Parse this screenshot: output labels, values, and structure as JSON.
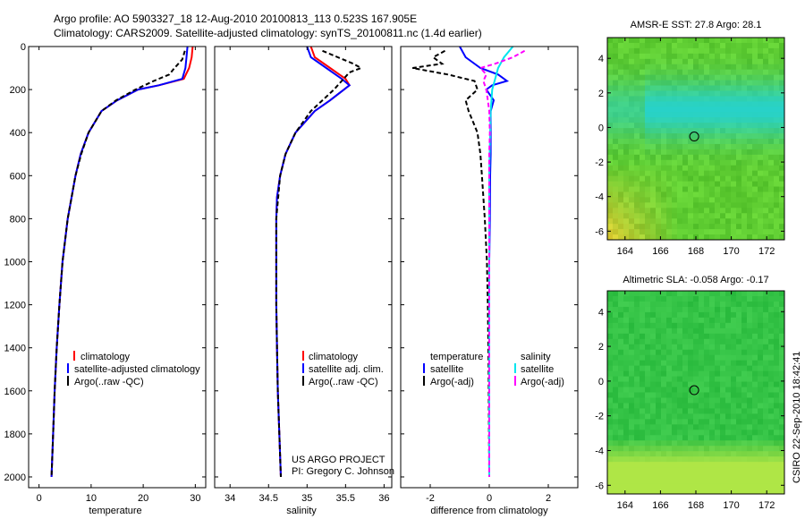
{
  "title": {
    "line1": "Argo profile: AO 5903327_18 12-Aug-2010 20100813_113 0.523S 167.905E",
    "line2": "Climatology: CARS2009. Satellite-adjusted climatology: synTS_20100811.nc (1.4d earlier)"
  },
  "side_text": "CSIRO 22-Sep-2010 18:42:41",
  "colors": {
    "climatology": "#ff0000",
    "satellite": "#0000ff",
    "argo": "#000000",
    "sal_satellite": "#00e5ee",
    "sal_argo": "#ff00ff"
  },
  "chart_data": [
    {
      "id": "temperature",
      "type": "line",
      "xlabel": "temperature",
      "ylabel": "",
      "xlim": [
        -2,
        32
      ],
      "ylim": [
        2050,
        0
      ],
      "xticks": [
        0,
        10,
        20,
        30
      ],
      "yticks": [
        0,
        200,
        400,
        600,
        800,
        1000,
        1200,
        1400,
        1600,
        1800,
        2000
      ],
      "legend": [
        "climatology",
        "satellite-adjusted climatology",
        "Argo(..raw -QC)"
      ],
      "series": [
        {
          "name": "climatology",
          "color": "#ff0000",
          "dash": "",
          "depth": [
            0,
            50,
            100,
            150,
            180,
            200,
            250,
            300,
            400,
            500,
            600,
            800,
            1000,
            1200,
            1400,
            1600,
            1800,
            2000
          ],
          "values": [
            29.5,
            29.3,
            28.8,
            27.8,
            23,
            19,
            15,
            12,
            9.5,
            8,
            7,
            5.5,
            4.5,
            3.9,
            3.4,
            3.0,
            2.7,
            2.4
          ]
        },
        {
          "name": "satellite",
          "color": "#0000ff",
          "dash": "",
          "depth": [
            0,
            50,
            100,
            150,
            180,
            200,
            250,
            300,
            400,
            500,
            600,
            800,
            1000,
            1200,
            1400,
            1600,
            1800,
            2000
          ],
          "values": [
            28.5,
            28.3,
            28.1,
            27.5,
            23,
            19,
            15,
            12,
            9.5,
            8,
            7,
            5.5,
            4.5,
            3.9,
            3.4,
            3.0,
            2.7,
            2.4
          ]
        },
        {
          "name": "Argo",
          "color": "#000000",
          "dash": "5,3",
          "depth": [
            20,
            60,
            100,
            130,
            160,
            200,
            250,
            300,
            400,
            500,
            600,
            800,
            1000,
            1200,
            1400,
            1600,
            1800,
            2000
          ],
          "values": [
            28,
            27.5,
            26,
            25,
            22,
            18.5,
            14.8,
            12,
            9.5,
            8.1,
            7,
            5.5,
            4.5,
            3.9,
            3.4,
            3.0,
            2.7,
            2.4
          ]
        }
      ]
    },
    {
      "id": "salinity",
      "type": "line",
      "xlabel": "salinity",
      "ylabel": "",
      "xlim": [
        33.8,
        36.1
      ],
      "ylim": [
        2050,
        0
      ],
      "xticks": [
        34,
        34.5,
        35,
        35.5,
        36
      ],
      "xticklabels": [
        "34",
        "34.5",
        "35",
        "35.5",
        "36"
      ],
      "yticks": [
        0,
        200,
        400,
        600,
        800,
        1000,
        1200,
        1400,
        1600,
        1800,
        2000
      ],
      "legend": [
        "climatology",
        "satellite adj. clim.",
        "Argo(..raw -QC)"
      ],
      "annotation": [
        "US ARGO PROJECT",
        "PI: Gregory C. Johnson"
      ],
      "series": [
        {
          "name": "climatology",
          "color": "#ff0000",
          "dash": "",
          "depth": [
            0,
            50,
            100,
            150,
            180,
            250,
            300,
            400,
            500,
            600,
            700,
            800,
            1000,
            1200,
            1400,
            1600,
            1800,
            2000
          ],
          "values": [
            35.05,
            35.1,
            35.3,
            35.5,
            35.55,
            35.3,
            35.1,
            34.85,
            34.72,
            34.65,
            34.61,
            34.6,
            34.6,
            34.6,
            34.61,
            34.62,
            34.64,
            34.66
          ]
        },
        {
          "name": "satellite",
          "color": "#0000ff",
          "dash": "",
          "depth": [
            0,
            50,
            100,
            150,
            180,
            250,
            300,
            400,
            500,
            600,
            700,
            800,
            1000,
            1200,
            1400,
            1600,
            1800,
            2000
          ],
          "values": [
            35.0,
            35.05,
            35.25,
            35.45,
            35.55,
            35.3,
            35.1,
            34.85,
            34.72,
            34.65,
            34.61,
            34.6,
            34.6,
            34.6,
            34.61,
            34.62,
            34.64,
            34.66
          ]
        },
        {
          "name": "Argo",
          "color": "#000000",
          "dash": "5,3",
          "depth": [
            20,
            50,
            80,
            100,
            120,
            160,
            200,
            250,
            300,
            400,
            500,
            600,
            800,
            1000,
            1200,
            1400,
            1600,
            1800,
            2000
          ],
          "values": [
            35.2,
            35.4,
            35.6,
            35.7,
            35.55,
            35.45,
            35.35,
            35.2,
            35.05,
            34.85,
            34.72,
            34.65,
            34.6,
            34.6,
            34.6,
            34.61,
            34.62,
            34.64,
            34.66
          ]
        }
      ]
    },
    {
      "id": "difference",
      "type": "line",
      "xlabel": "difference from climatology",
      "ylabel": "",
      "xlim": [
        -3,
        3
      ],
      "ylim": [
        2050,
        0
      ],
      "xticks": [
        -2,
        0,
        2
      ],
      "yticks": [
        0,
        200,
        400,
        600,
        800,
        1000,
        1200,
        1400,
        1600,
        1800,
        2000
      ],
      "legend_temperature": {
        "title": "temperature",
        "items": [
          "satellite",
          "Argo(-adj)"
        ]
      },
      "legend_salinity": {
        "title": "salinity",
        "items": [
          "satellite",
          "Argo(-adj)"
        ]
      },
      "series": [
        {
          "name": "temperature satellite",
          "color": "#0000ff",
          "dash": "",
          "depth": [
            0,
            50,
            100,
            130,
            160,
            180,
            200,
            250,
            300,
            400,
            500,
            600,
            800,
            1000,
            1500,
            2000
          ],
          "values": [
            -1.0,
            -0.8,
            -0.3,
            0.3,
            0.6,
            0.1,
            -0.1,
            0.15,
            0.05,
            0.05,
            0.05,
            0.03,
            0.02,
            0.0,
            0.0,
            0.0
          ]
        },
        {
          "name": "temperature Argo",
          "color": "#000000",
          "dash": "5,3",
          "depth": [
            20,
            50,
            80,
            100,
            130,
            160,
            200,
            250,
            300,
            400,
            500,
            600,
            700,
            800,
            1000,
            1200,
            1500,
            2000
          ],
          "values": [
            -1.5,
            -1.9,
            -1.6,
            -2.6,
            -1.4,
            -0.5,
            -0.4,
            -0.8,
            -0.7,
            -0.4,
            -0.3,
            -0.25,
            -0.2,
            -0.15,
            -0.08,
            -0.05,
            -0.02,
            0.0
          ]
        },
        {
          "name": "salinity satellite",
          "color": "#00e5ee",
          "dash": "",
          "depth": [
            0,
            50,
            100,
            150,
            200,
            300,
            400,
            600,
            800,
            1000,
            1500,
            2000
          ],
          "values": [
            0.8,
            0.5,
            0.3,
            0.2,
            0.1,
            0.05,
            0.03,
            0.0,
            0.0,
            0.0,
            0.0,
            0.0
          ]
        },
        {
          "name": "salinity Argo",
          "color": "#ff00ff",
          "dash": "5,3",
          "depth": [
            20,
            50,
            80,
            100,
            130,
            160,
            200,
            250,
            300,
            400,
            500,
            600,
            800,
            1000,
            1500,
            2000
          ],
          "values": [
            1.2,
            0.8,
            0.2,
            -0.3,
            -0.1,
            -0.2,
            -0.1,
            -0.05,
            0.0,
            0.02,
            0.0,
            0.0,
            0.0,
            0.0,
            0.0,
            0.0
          ]
        }
      ]
    },
    {
      "id": "sst_map",
      "type": "heatmap",
      "title": "AMSR-E SST: 27.8 Argo: 28.1",
      "xlim": [
        163,
        173
      ],
      "ylim": [
        -6.5,
        5.2
      ],
      "xticks": [
        164,
        166,
        168,
        170,
        172
      ],
      "yticks": [
        4,
        2,
        0,
        -2,
        -4,
        -6
      ],
      "marker": {
        "lon": 167.905,
        "lat": -0.523
      }
    },
    {
      "id": "sla_map",
      "type": "heatmap",
      "title": "Altimetric SLA: -0.058 Argo: -0.17",
      "xlim": [
        163,
        173
      ],
      "ylim": [
        -6.5,
        5.2
      ],
      "xticks": [
        164,
        166,
        168,
        170,
        172
      ],
      "yticks": [
        4,
        2,
        0,
        -2,
        -4,
        -6
      ],
      "marker": {
        "lon": 167.905,
        "lat": -0.523
      }
    }
  ]
}
